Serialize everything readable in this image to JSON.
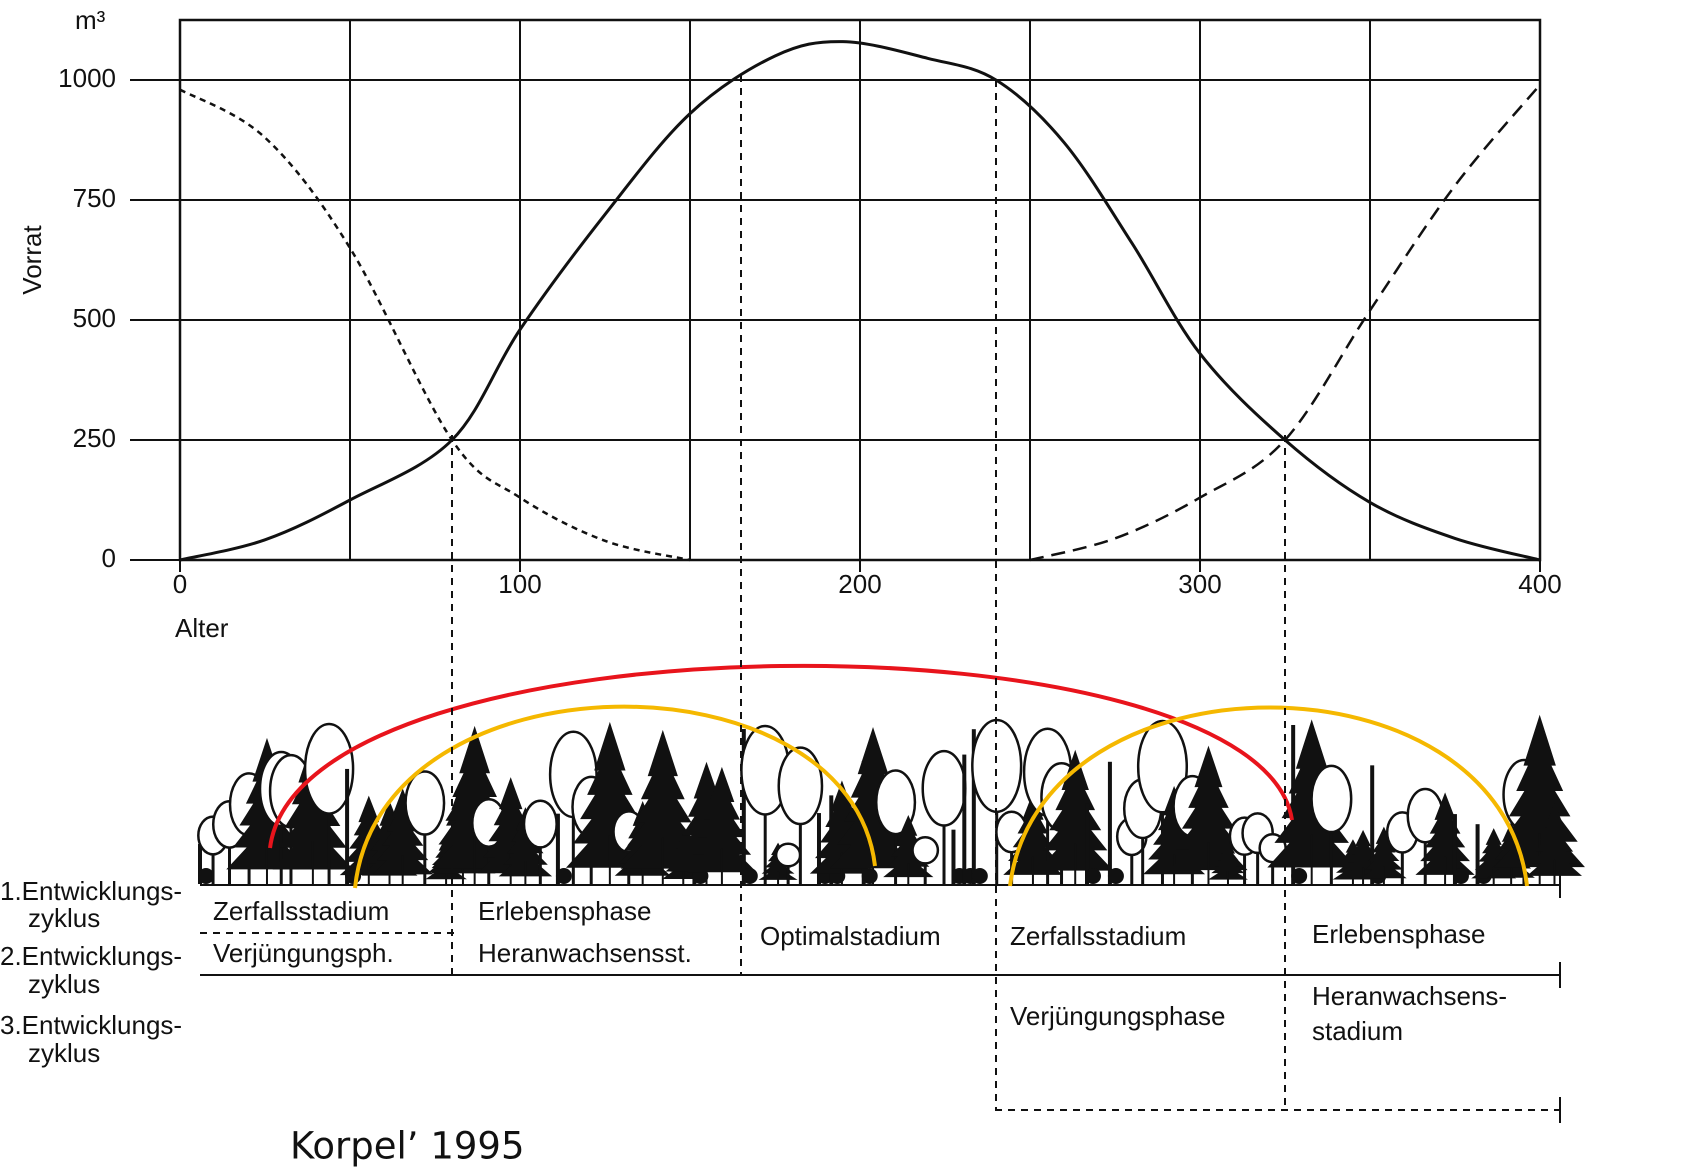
{
  "chart_data": {
    "type": "line",
    "x_label": "Alter",
    "y_label": "Vorrat",
    "y_unit": "m³",
    "xlim": [
      0,
      400
    ],
    "ylim": [
      0,
      1125
    ],
    "xticks": [
      0,
      100,
      200,
      300,
      400
    ],
    "yticks": [
      0,
      250,
      500,
      750,
      1000
    ],
    "grid": true,
    "x_grid_step": 50,
    "series": [
      {
        "style": "solid",
        "color": "#111111",
        "x": [
          0,
          25,
          50,
          80,
          100,
          125,
          150,
          175,
          195,
          220,
          240,
          260,
          280,
          300,
          325,
          350,
          375,
          400
        ],
        "values": [
          0,
          42,
          125,
          250,
          480,
          720,
          930,
          1050,
          1080,
          1045,
          1000,
          870,
          660,
          430,
          250,
          120,
          45,
          0
        ]
      },
      {
        "style": "dashed",
        "color": "#111111",
        "x": [
          0,
          25,
          50,
          80,
          100,
          125,
          150
        ],
        "values": [
          980,
          880,
          650,
          250,
          130,
          40,
          0
        ]
      },
      {
        "style": "dashed",
        "color": "#111111",
        "x": [
          250,
          275,
          300,
          325,
          350,
          375,
          400
        ],
        "values": [
          0,
          45,
          130,
          250,
          520,
          780,
          990
        ]
      }
    ],
    "phase_boundaries": [
      80,
      165,
      240,
      325
    ]
  },
  "cycles": [
    [
      "1.Entwicklungs-",
      "zyklus"
    ],
    [
      "2.Entwicklungs-",
      "zyklus"
    ],
    [
      "3.Entwicklungs-",
      "zyklus"
    ]
  ],
  "phases": [
    "Zerfallsstadium",
    "Erlebensphase",
    "Verjüngungsph.",
    "Heranwachsensst.",
    "Optimalstadium",
    "Zerfallsstadium",
    "Erlebensphase",
    "Verjüngungsphase",
    [
      "Heranwachsens-",
      "stadium"
    ]
  ],
  "source": "Korpel’ 1995"
}
